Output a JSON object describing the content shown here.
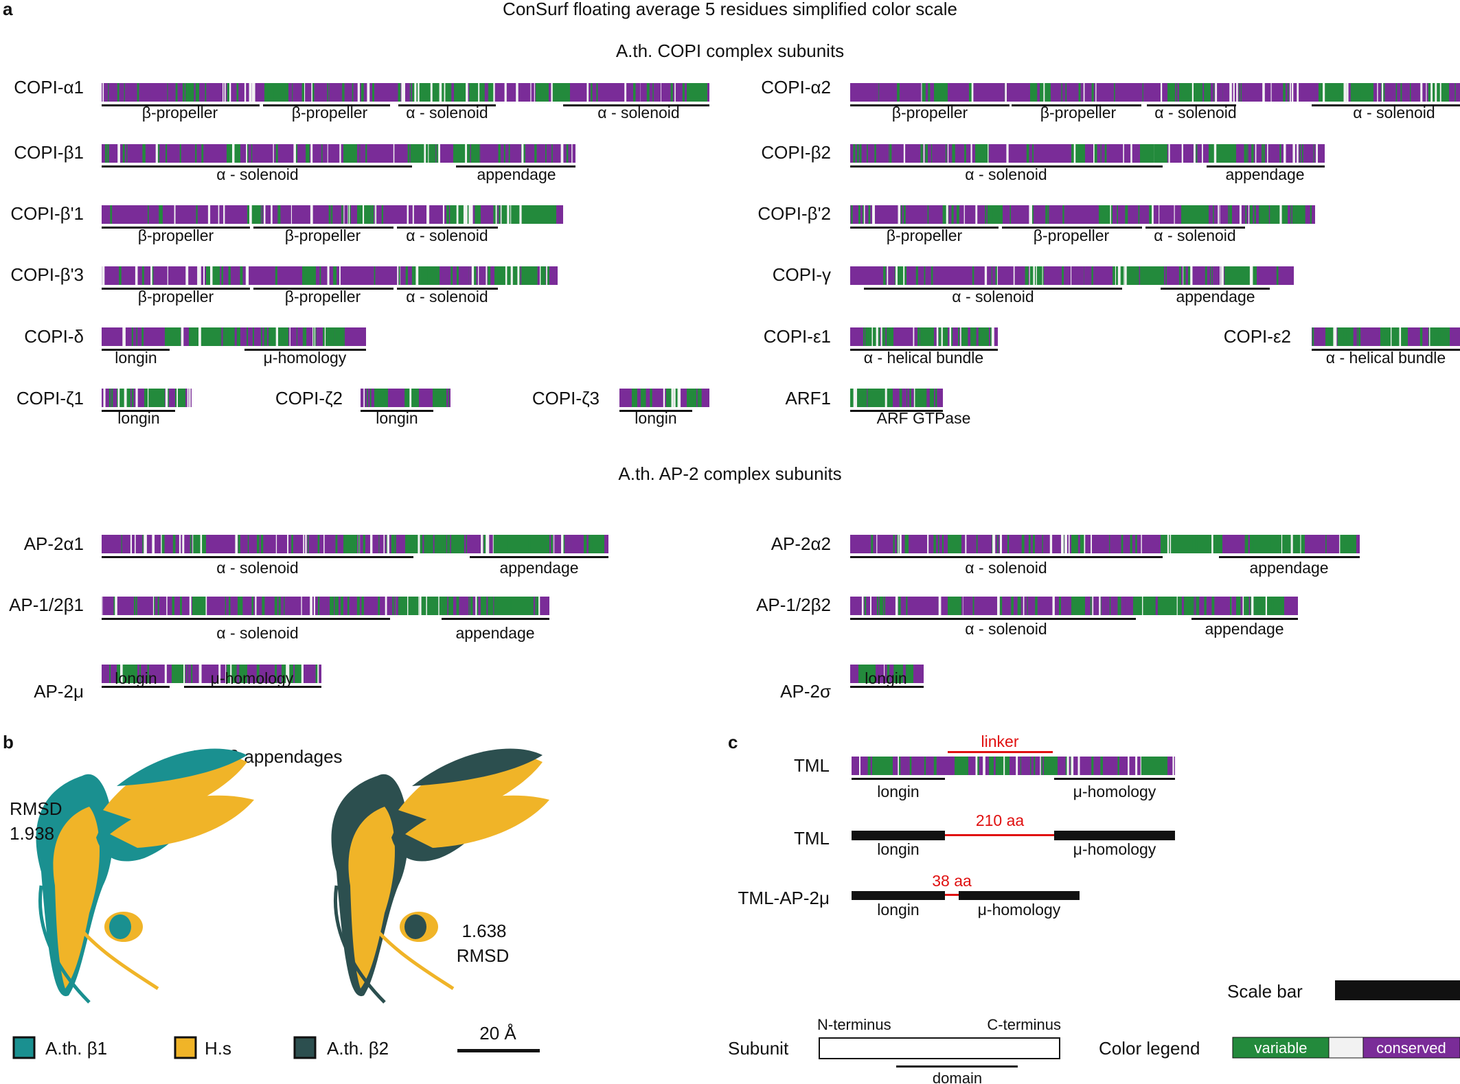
{
  "panel_labels": {
    "a": "a",
    "b": "b",
    "c": "c"
  },
  "titles": {
    "main": "ConSurf floating average 5 residues simplified color scale",
    "copi": "A.th. COPI complex subunits",
    "ap2": "A.th. AP-2 complex subunits",
    "b": "AP-2β appendages"
  },
  "colors": {
    "variable": "#238a3c",
    "conserved": "#7a2c98",
    "middle": "#f2f2f2",
    "linker": "#e01010"
  },
  "tracks": [
    {
      "name": "COPI-α1",
      "domains": [
        "β-propeller",
        "β-propeller",
        "α - solenoid",
        "α - solenoid"
      ]
    },
    {
      "name": "COPI-α2",
      "domains": [
        "β-propeller",
        "β-propeller",
        "α - solenoid",
        "α - solenoid"
      ]
    },
    {
      "name": "COPI-β1",
      "domains": [
        "α - solenoid",
        "appendage"
      ]
    },
    {
      "name": "COPI-β2",
      "domains": [
        "α - solenoid",
        "appendage"
      ]
    },
    {
      "name": "COPI-β'1",
      "domains": [
        "β-propeller",
        "β-propeller",
        "α - solenoid"
      ]
    },
    {
      "name": "COPI-β'2",
      "domains": [
        "β-propeller",
        "β-propeller",
        "α - solenoid"
      ]
    },
    {
      "name": "COPI-β'3",
      "domains": [
        "β-propeller",
        "β-propeller",
        "α - solenoid"
      ]
    },
    {
      "name": "COPI-γ",
      "domains": [
        "α - solenoid",
        "appendage"
      ]
    },
    {
      "name": "COPI-δ",
      "domains": [
        "longin",
        "μ-homology"
      ]
    },
    {
      "name": "COPI-ε1",
      "domains": [
        "α - helical bundle"
      ]
    },
    {
      "name": "COPI-ε2",
      "domains": [
        "α - helical bundle"
      ]
    },
    {
      "name": "COPI-ζ1",
      "domains": [
        "longin"
      ]
    },
    {
      "name": "COPI-ζ2",
      "domains": [
        "longin"
      ]
    },
    {
      "name": "COPI-ζ3",
      "domains": [
        "longin"
      ]
    },
    {
      "name": "ARF1",
      "domains": [
        "ARF GTPase"
      ]
    },
    {
      "name": "AP-2α1",
      "domains": [
        "α - solenoid",
        "appendage"
      ]
    },
    {
      "name": "AP-2α2",
      "domains": [
        "α - solenoid",
        "appendage"
      ]
    },
    {
      "name": "AP-1/2β1",
      "domains": [
        "α - solenoid",
        "appendage"
      ]
    },
    {
      "name": "AP-1/2β2",
      "domains": [
        "α - solenoid",
        "appendage"
      ]
    },
    {
      "name": "AP-2μ",
      "domains": [
        "longin",
        "μ-homology"
      ]
    },
    {
      "name": "AP-2σ",
      "domains": [
        "longin"
      ]
    }
  ],
  "panel_b": {
    "rmsd_left": [
      "RMSD",
      "1.938"
    ],
    "rmsd_right": [
      "1.638",
      "RMSD"
    ],
    "legend": [
      {
        "label": "A.th. β1",
        "color": "#1a9090"
      },
      {
        "label": "H.s",
        "color": "#f0b428"
      },
      {
        "label": "A.th. β2",
        "color": "#2c4f4f"
      }
    ],
    "scale_label": "20 Å"
  },
  "panel_c": {
    "rows": [
      {
        "name": "TML",
        "domains": [
          "longin",
          "μ-homology"
        ],
        "note": "linker"
      },
      {
        "name": "TML",
        "domains": [
          "longin",
          "μ-homology"
        ],
        "note": "210 aa"
      },
      {
        "name": "TML-AP-2μ",
        "domains": [
          "longin",
          "μ-homology"
        ],
        "note": "38 aa"
      }
    ],
    "scale_bar_label": "Scale bar",
    "subunit_label": "Subunit",
    "n_terminus": "N-terminus",
    "c_terminus": "C-terminus",
    "domain_label": "domain",
    "color_legend_label": "Color legend",
    "variable_label": "variable",
    "conserved_label": "conserved"
  }
}
